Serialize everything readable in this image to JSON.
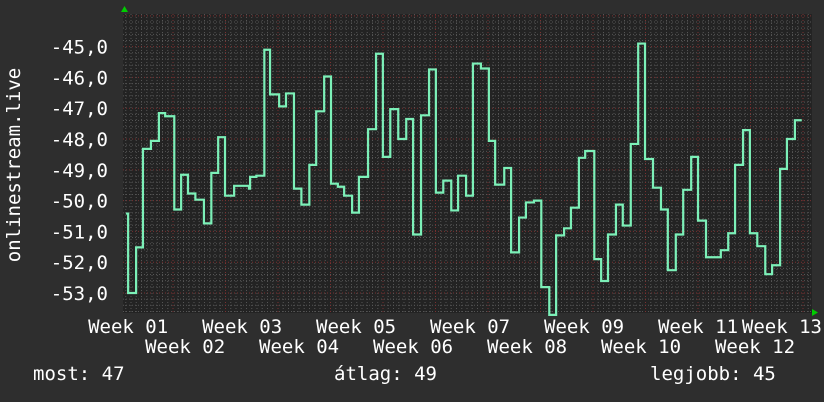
{
  "chart_data": {
    "type": "line",
    "step": true,
    "title": "",
    "ylabel": "onlinestream.live",
    "xlabel": "",
    "ylim": [
      -53.65,
      -43.94
    ],
    "xlim": [
      0.91,
      13.0
    ],
    "yticks": [
      -53,
      -52,
      -51,
      -50,
      -49,
      -48,
      -47,
      -46,
      -45
    ],
    "ytick_labels": [
      "-53,0",
      "-52,0",
      "-51,0",
      "-50,0",
      "-49,0",
      "-48,0",
      "-47,0",
      "-46,0",
      "-45,0"
    ],
    "xticks": [
      1,
      2,
      3,
      4,
      5,
      6,
      7,
      8,
      9,
      10,
      11,
      12,
      13
    ],
    "xtick_labels": [
      "Week 01",
      "Week 02",
      "Week 03",
      "Week 04",
      "Week 05",
      "Week 06",
      "Week 07",
      "Week 08",
      "Week 09",
      "Week 10",
      "Week 11",
      "Week 12",
      "Week 13"
    ],
    "grid": true,
    "colors": {
      "line": "#7cf0b8",
      "background": "#2e2e2e",
      "plot_background": "#232323",
      "major_grid": "#7a3030",
      "minor_grid": "#555555",
      "axis_arrow": "#00cc00"
    },
    "x_end": 12.82,
    "points": [
      [
        0.96,
        -50.42
      ],
      [
        1.0,
        -53.0
      ],
      [
        1.14,
        -51.52
      ],
      [
        1.26,
        -48.32
      ],
      [
        1.4,
        -48.06
      ],
      [
        1.54,
        -47.16
      ],
      [
        1.65,
        -47.26
      ],
      [
        1.81,
        -50.29
      ],
      [
        1.93,
        -49.16
      ],
      [
        2.05,
        -49.77
      ],
      [
        2.18,
        -49.97
      ],
      [
        2.33,
        -50.74
      ],
      [
        2.46,
        -49.1
      ],
      [
        2.58,
        -47.94
      ],
      [
        2.7,
        -49.84
      ],
      [
        2.86,
        -49.52
      ],
      [
        3.12,
        -49.61
      ],
      [
        3.14,
        -49.23
      ],
      [
        3.25,
        -49.19
      ],
      [
        3.39,
        -45.1
      ],
      [
        3.49,
        -46.55
      ],
      [
        3.65,
        -46.94
      ],
      [
        3.77,
        -46.52
      ],
      [
        3.91,
        -49.61
      ],
      [
        4.04,
        -50.13
      ],
      [
        4.18,
        -48.84
      ],
      [
        4.3,
        -47.1
      ],
      [
        4.44,
        -45.97
      ],
      [
        4.56,
        -49.45
      ],
      [
        4.68,
        -49.55
      ],
      [
        4.79,
        -49.84
      ],
      [
        4.93,
        -50.39
      ],
      [
        5.05,
        -49.23
      ],
      [
        5.21,
        -47.68
      ],
      [
        5.35,
        -45.23
      ],
      [
        5.47,
        -48.58
      ],
      [
        5.6,
        -47.03
      ],
      [
        5.74,
        -48.0
      ],
      [
        5.88,
        -47.35
      ],
      [
        6.0,
        -51.1
      ],
      [
        6.14,
        -47.23
      ],
      [
        6.28,
        -45.74
      ],
      [
        6.4,
        -49.74
      ],
      [
        6.53,
        -49.35
      ],
      [
        6.67,
        -50.32
      ],
      [
        6.79,
        -49.19
      ],
      [
        6.93,
        -49.84
      ],
      [
        7.05,
        -45.55
      ],
      [
        7.19,
        -45.71
      ],
      [
        7.33,
        -48.06
      ],
      [
        7.44,
        -49.48
      ],
      [
        7.6,
        -48.94
      ],
      [
        7.72,
        -51.68
      ],
      [
        7.86,
        -50.55
      ],
      [
        7.98,
        -50.06
      ],
      [
        8.12,
        -50.0
      ],
      [
        8.25,
        -52.81
      ],
      [
        8.39,
        -53.71
      ],
      [
        8.51,
        -51.13
      ],
      [
        8.65,
        -50.9
      ],
      [
        8.77,
        -50.23
      ],
      [
        8.91,
        -48.61
      ],
      [
        9.02,
        -48.39
      ],
      [
        9.18,
        -51.9
      ],
      [
        9.3,
        -52.61
      ],
      [
        9.42,
        -51.1
      ],
      [
        9.56,
        -50.13
      ],
      [
        9.68,
        -50.81
      ],
      [
        9.82,
        -48.16
      ],
      [
        9.95,
        -44.9
      ],
      [
        10.07,
        -48.65
      ],
      [
        10.21,
        -49.58
      ],
      [
        10.35,
        -50.29
      ],
      [
        10.47,
        -52.26
      ],
      [
        10.61,
        -51.1
      ],
      [
        10.74,
        -49.65
      ],
      [
        10.88,
        -48.58
      ],
      [
        11.0,
        -50.65
      ],
      [
        11.14,
        -51.84
      ],
      [
        11.4,
        -51.61
      ],
      [
        11.53,
        -51.06
      ],
      [
        11.65,
        -48.84
      ],
      [
        11.79,
        -47.71
      ],
      [
        11.91,
        -51.06
      ],
      [
        12.04,
        -51.48
      ],
      [
        12.18,
        -52.39
      ],
      [
        12.3,
        -52.1
      ],
      [
        12.44,
        -48.97
      ],
      [
        12.56,
        -48.0
      ],
      [
        12.7,
        -47.39
      ]
    ]
  },
  "legend": {
    "current_label": "most:",
    "current_value": "47",
    "average_label": "átlag:",
    "average_value": "49",
    "best_label": "legjobb:",
    "best_value": "45"
  }
}
